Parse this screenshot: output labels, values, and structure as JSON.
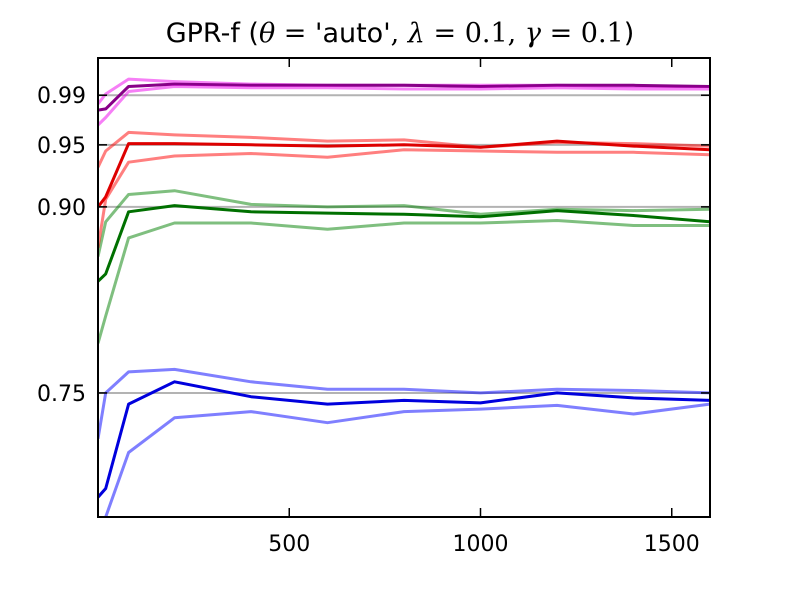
{
  "chart_data": {
    "type": "line",
    "title": {
      "prefix": "GPR-f (",
      "theta": "θ",
      "eq1": " = ",
      "auto": "'auto'",
      "comma1": ", ",
      "lambda": "λ",
      "eq2": " = ",
      "lambda_val": "0.1",
      "comma2": ", ",
      "gamma": "γ",
      "eq3": " = ",
      "gamma_val": "0.1",
      "suffix": ")"
    },
    "xlabel": "",
    "ylabel": "",
    "xlim": [
      0,
      1600
    ],
    "ylim": [
      0.65,
      1.02
    ],
    "x_ticks": [
      500,
      1000,
      1500
    ],
    "x_tick_labels": [
      "500",
      "1000",
      "1500"
    ],
    "y_ticks": [
      0.75,
      0.9,
      0.95,
      0.99
    ],
    "y_tick_labels": [
      "0.75",
      "0.90",
      "0.95",
      "0.99"
    ],
    "reference_lines": [
      0.75,
      0.9,
      0.95,
      0.99
    ],
    "reference_color": "#b3b3b3",
    "grid": false,
    "legend": "none",
    "series": [
      {
        "color": "#0000ff",
        "opacity": 0.5,
        "width": 3,
        "points": [
          [
            0,
            0.713
          ],
          [
            20,
            0.75
          ],
          [
            80,
            0.767
          ],
          [
            200,
            0.769
          ],
          [
            400,
            0.759
          ],
          [
            600,
            0.753
          ],
          [
            800,
            0.753
          ],
          [
            1000,
            0.75
          ],
          [
            1200,
            0.753
          ],
          [
            1400,
            0.752
          ],
          [
            1600,
            0.75
          ]
        ]
      },
      {
        "color": "#0000dd",
        "opacity": 1.0,
        "width": 3,
        "points": [
          [
            0,
            0.666
          ],
          [
            20,
            0.673
          ],
          [
            80,
            0.741
          ],
          [
            200,
            0.759
          ],
          [
            400,
            0.747
          ],
          [
            600,
            0.741
          ],
          [
            800,
            0.744
          ],
          [
            1000,
            0.742
          ],
          [
            1200,
            0.75
          ],
          [
            1400,
            0.746
          ],
          [
            1600,
            0.744
          ]
        ]
      },
      {
        "color": "#0000ff",
        "opacity": 0.5,
        "width": 3,
        "points": [
          [
            0,
            0.62
          ],
          [
            20,
            0.65
          ],
          [
            80,
            0.702
          ],
          [
            200,
            0.73
          ],
          [
            400,
            0.735
          ],
          [
            600,
            0.726
          ],
          [
            800,
            0.735
          ],
          [
            1000,
            0.737
          ],
          [
            1200,
            0.74
          ],
          [
            1400,
            0.733
          ],
          [
            1600,
            0.741
          ]
        ]
      },
      {
        "color": "#008000",
        "opacity": 0.5,
        "width": 3,
        "points": [
          [
            0,
            0.86
          ],
          [
            20,
            0.888
          ],
          [
            80,
            0.91
          ],
          [
            200,
            0.913
          ],
          [
            400,
            0.902
          ],
          [
            600,
            0.9
          ],
          [
            800,
            0.901
          ],
          [
            1000,
            0.894
          ],
          [
            1200,
            0.898
          ],
          [
            1400,
            0.897
          ],
          [
            1600,
            0.898
          ]
        ]
      },
      {
        "color": "#007000",
        "opacity": 1.0,
        "width": 3,
        "points": [
          [
            0,
            0.84
          ],
          [
            20,
            0.846
          ],
          [
            80,
            0.896
          ],
          [
            200,
            0.901
          ],
          [
            400,
            0.896
          ],
          [
            600,
            0.895
          ],
          [
            800,
            0.894
          ],
          [
            1000,
            0.892
          ],
          [
            1200,
            0.897
          ],
          [
            1400,
            0.893
          ],
          [
            1600,
            0.888
          ]
        ]
      },
      {
        "color": "#008000",
        "opacity": 0.5,
        "width": 3,
        "points": [
          [
            0,
            0.79
          ],
          [
            20,
            0.812
          ],
          [
            80,
            0.875
          ],
          [
            200,
            0.887
          ],
          [
            400,
            0.887
          ],
          [
            600,
            0.882
          ],
          [
            800,
            0.887
          ],
          [
            1000,
            0.887
          ],
          [
            1200,
            0.889
          ],
          [
            1400,
            0.885
          ],
          [
            1600,
            0.885
          ]
        ]
      },
      {
        "color": "#ff0000",
        "opacity": 0.5,
        "width": 3,
        "points": [
          [
            0,
            0.932
          ],
          [
            20,
            0.945
          ],
          [
            80,
            0.96
          ],
          [
            200,
            0.958
          ],
          [
            400,
            0.956
          ],
          [
            600,
            0.953
          ],
          [
            800,
            0.954
          ],
          [
            1000,
            0.948
          ],
          [
            1200,
            0.952
          ],
          [
            1400,
            0.951
          ],
          [
            1600,
            0.949
          ]
        ]
      },
      {
        "color": "#dd0000",
        "opacity": 1.0,
        "width": 3,
        "points": [
          [
            0,
            0.9
          ],
          [
            20,
            0.908
          ],
          [
            80,
            0.951
          ],
          [
            200,
            0.951
          ],
          [
            400,
            0.95
          ],
          [
            600,
            0.949
          ],
          [
            800,
            0.95
          ],
          [
            1000,
            0.948
          ],
          [
            1200,
            0.953
          ],
          [
            1400,
            0.949
          ],
          [
            1600,
            0.946
          ]
        ]
      },
      {
        "color": "#ff0000",
        "opacity": 0.5,
        "width": 3,
        "points": [
          [
            0,
            0.867
          ],
          [
            20,
            0.906
          ],
          [
            80,
            0.936
          ],
          [
            200,
            0.941
          ],
          [
            400,
            0.943
          ],
          [
            600,
            0.94
          ],
          [
            800,
            0.946
          ],
          [
            1000,
            0.945
          ],
          [
            1200,
            0.944
          ],
          [
            1400,
            0.944
          ],
          [
            1600,
            0.942
          ]
        ]
      },
      {
        "color": "#ee00ee",
        "opacity": 0.5,
        "width": 3,
        "points": [
          [
            0,
            0.983
          ],
          [
            20,
            0.991
          ],
          [
            80,
            1.003
          ],
          [
            200,
            1.001
          ],
          [
            400,
            0.999
          ],
          [
            600,
            0.998
          ],
          [
            800,
            0.998
          ],
          [
            1000,
            0.998
          ],
          [
            1200,
            0.998
          ],
          [
            1400,
            0.997
          ],
          [
            1600,
            0.997
          ]
        ]
      },
      {
        "color": "#880088",
        "opacity": 1.0,
        "width": 3,
        "points": [
          [
            0,
            0.978
          ],
          [
            20,
            0.979
          ],
          [
            80,
            0.997
          ],
          [
            200,
            0.999
          ],
          [
            400,
            0.998
          ],
          [
            600,
            0.998
          ],
          [
            800,
            0.998
          ],
          [
            1000,
            0.997
          ],
          [
            1200,
            0.998
          ],
          [
            1400,
            0.998
          ],
          [
            1600,
            0.997
          ]
        ]
      },
      {
        "color": "#ee00ee",
        "opacity": 0.5,
        "width": 3,
        "points": [
          [
            0,
            0.966
          ],
          [
            20,
            0.972
          ],
          [
            80,
            0.993
          ],
          [
            200,
            0.997
          ],
          [
            400,
            0.996
          ],
          [
            600,
            0.996
          ],
          [
            800,
            0.995
          ],
          [
            1000,
            0.995
          ],
          [
            1200,
            0.996
          ],
          [
            1400,
            0.995
          ],
          [
            1600,
            0.995
          ]
        ]
      }
    ]
  }
}
